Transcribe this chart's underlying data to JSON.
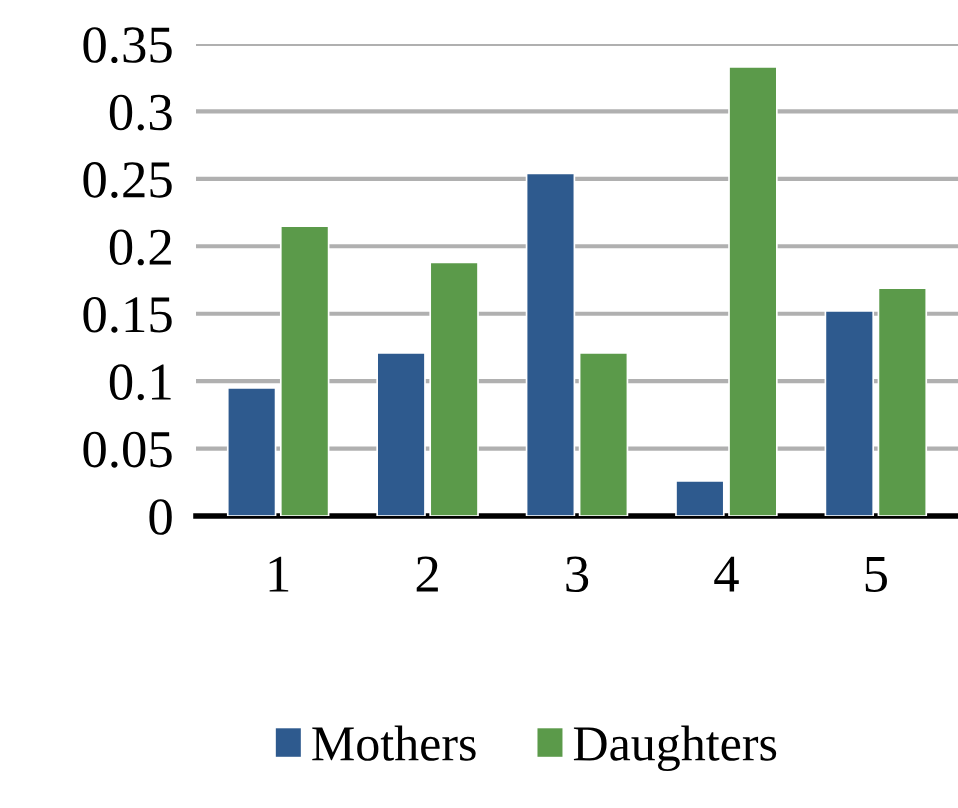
{
  "chart_data": {
    "type": "bar",
    "categories": [
      "1",
      "2",
      "3",
      "4",
      "5"
    ],
    "series": [
      {
        "name": "Mothers",
        "color": "#2e5a8e",
        "values": [
          0.095,
          0.121,
          0.254,
          0.026,
          0.152
        ]
      },
      {
        "name": "Daughters",
        "color": "#5b9a4a",
        "values": [
          0.215,
          0.188,
          0.121,
          0.333,
          0.169
        ]
      }
    ],
    "ylim": [
      0,
      0.35
    ],
    "yticks": [
      0,
      {
        "value": 0.05,
        "label": "0.05"
      },
      {
        "value": 0.1,
        "label": "0.1"
      },
      {
        "value": 0.15,
        "label": "0.15"
      },
      {
        "value": 0.2,
        "label": "0.2"
      },
      {
        "value": 0.25,
        "label": "0.25"
      },
      {
        "value": 0.3,
        "label": "0.3"
      },
      {
        "value": 0.35,
        "label": "0.35"
      }
    ],
    "grid": "y",
    "legend": "bottom"
  }
}
